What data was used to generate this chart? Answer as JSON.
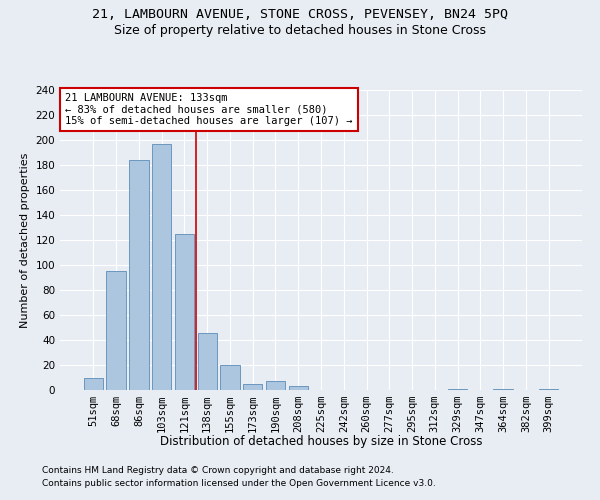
{
  "title1": "21, LAMBOURN AVENUE, STONE CROSS, PEVENSEY, BN24 5PQ",
  "title2": "Size of property relative to detached houses in Stone Cross",
  "xlabel": "Distribution of detached houses by size in Stone Cross",
  "ylabel": "Number of detached properties",
  "bar_labels": [
    "51sqm",
    "68sqm",
    "86sqm",
    "103sqm",
    "121sqm",
    "138sqm",
    "155sqm",
    "173sqm",
    "190sqm",
    "208sqm",
    "225sqm",
    "242sqm",
    "260sqm",
    "277sqm",
    "295sqm",
    "312sqm",
    "329sqm",
    "347sqm",
    "364sqm",
    "382sqm",
    "399sqm"
  ],
  "bar_values": [
    10,
    95,
    184,
    197,
    125,
    46,
    20,
    5,
    7,
    3,
    0,
    0,
    0,
    0,
    0,
    0,
    1,
    0,
    1,
    0,
    1
  ],
  "bar_color": "#adc6e0",
  "bar_edge_color": "#5b8db8",
  "vline_x": 4.5,
  "vline_color": "#cc0000",
  "annotation_text": "21 LAMBOURN AVENUE: 133sqm\n← 83% of detached houses are smaller (580)\n15% of semi-detached houses are larger (107) →",
  "annotation_box_color": "#ffffff",
  "annotation_box_edge": "#cc0000",
  "ylim": [
    0,
    240
  ],
  "yticks": [
    0,
    20,
    40,
    60,
    80,
    100,
    120,
    140,
    160,
    180,
    200,
    220,
    240
  ],
  "footer1": "Contains HM Land Registry data © Crown copyright and database right 2024.",
  "footer2": "Contains public sector information licensed under the Open Government Licence v3.0.",
  "background_color": "#e8edf4",
  "plot_bg_color": "#e8edf4",
  "title1_fontsize": 9.5,
  "title2_fontsize": 9,
  "xlabel_fontsize": 8.5,
  "ylabel_fontsize": 8,
  "tick_fontsize": 7.5,
  "footer_fontsize": 6.5,
  "annot_fontsize": 7.5
}
